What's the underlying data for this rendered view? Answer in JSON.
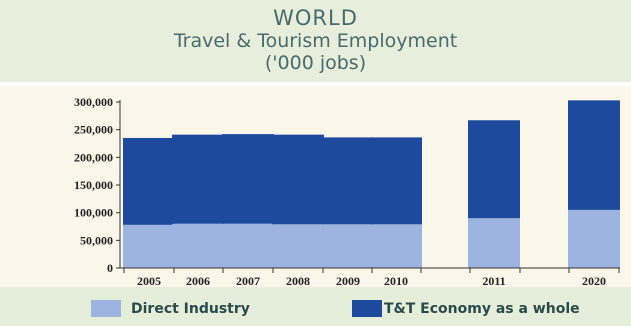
{
  "chart_data": {
    "type": "bar",
    "stacked": true,
    "title": "WORLD",
    "subtitle_line1": "Travel & Tourism Employment",
    "subtitle_line2": "('000 jobs)",
    "categories": [
      "2005",
      "2006",
      "2007",
      "2008",
      "2009",
      "2010",
      "2011",
      "2020"
    ],
    "series": [
      {
        "name": "Direct Industry",
        "color": "#9db4e0",
        "values": [
          78000,
          80000,
          80000,
          79000,
          79000,
          79000,
          90000,
          105000
        ]
      },
      {
        "name": "T&T Economy as a whole",
        "color": "#1d4a9c",
        "values": [
          157000,
          161000,
          162000,
          162000,
          157000,
          157000,
          177000,
          198000
        ]
      }
    ],
    "ylim": [
      0,
      300000
    ],
    "yticks": [
      "0",
      "50,000",
      "100,000",
      "150,000",
      "200,000",
      "250,000",
      "300,000"
    ],
    "ytick_values": [
      0,
      50000,
      100000,
      150000,
      200000,
      250000,
      300000
    ],
    "grid": false,
    "legend_position": "bottom"
  },
  "colors": {
    "title_band": "#e7eedc",
    "plot_band": "#fbf6ea",
    "legend_band": "#e4eedb",
    "title_text": "#4a6b6b"
  }
}
